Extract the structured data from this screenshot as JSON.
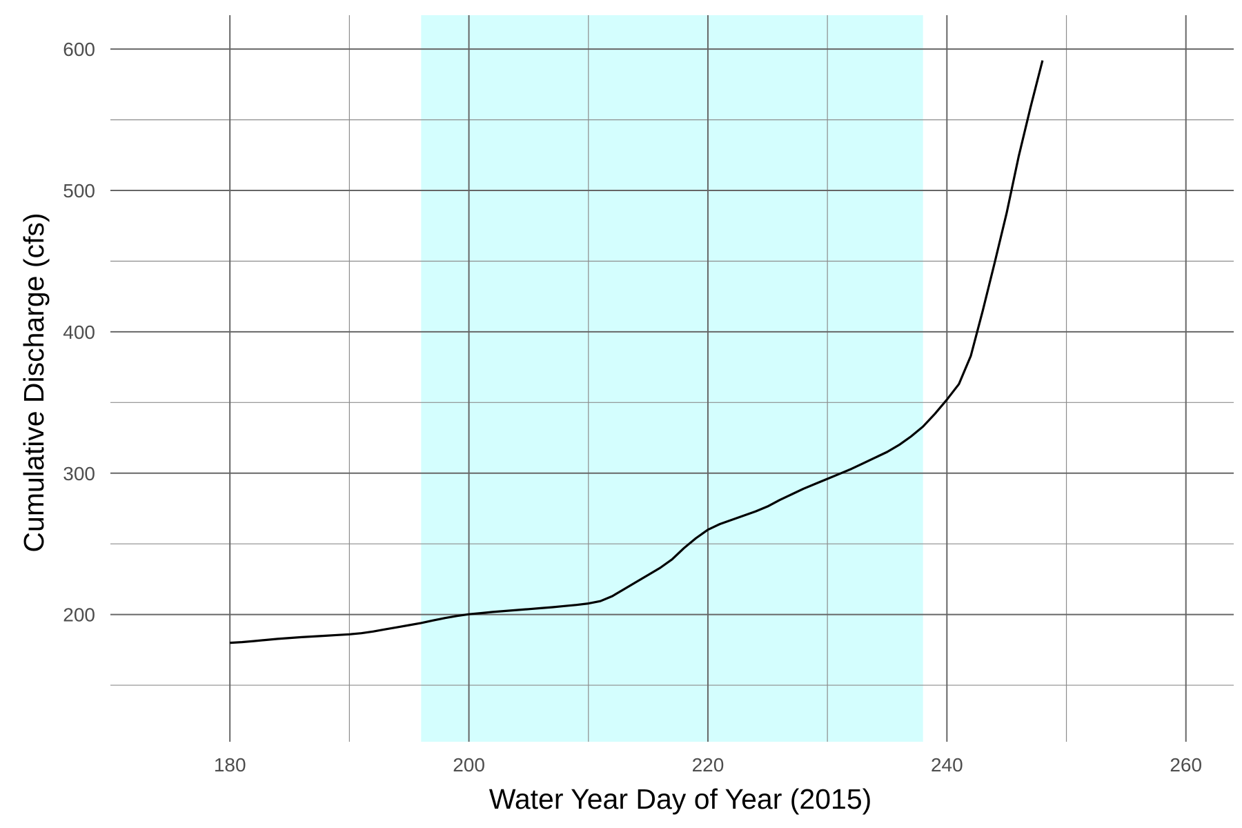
{
  "chart_data": {
    "type": "line",
    "xlabel": "Water Year Day of Year (2015)",
    "ylabel": "Cumulative Discharge (cfs)",
    "xlim": [
      170,
      264
    ],
    "ylim": [
      110,
      624
    ],
    "x_ticks": [
      180,
      200,
      220,
      240,
      260
    ],
    "x_minor_ticks": [
      190,
      210,
      230,
      250
    ],
    "y_ticks": [
      200,
      300,
      400,
      500,
      600
    ],
    "y_minor_ticks": [
      150,
      250,
      350,
      450,
      550
    ],
    "grid": true,
    "legend": "none",
    "shaded_region": {
      "x_start": 196,
      "x_end": 238,
      "color": "#d4fefe"
    },
    "line_color": "#000000",
    "series": [
      {
        "x": [
          180,
          181,
          182,
          183,
          184,
          185,
          186,
          187,
          188,
          189,
          190,
          191,
          192,
          193,
          194,
          195,
          196,
          197,
          198,
          199,
          200,
          201,
          202,
          203,
          204,
          205,
          206,
          207,
          208,
          209,
          210,
          211,
          212,
          213,
          214,
          215,
          216,
          217,
          218,
          219,
          220,
          221,
          222,
          223,
          224,
          225,
          226,
          227,
          228,
          229,
          230,
          231,
          232,
          233,
          234,
          235,
          236,
          237,
          238,
          239,
          240,
          241,
          242,
          243,
          244,
          245,
          246,
          247,
          248
        ],
        "y": [
          180,
          180.5,
          181.2,
          182,
          182.8,
          183.4,
          184,
          184.5,
          185,
          185.5,
          186,
          186.8,
          188,
          189.5,
          191,
          192.5,
          194,
          195.8,
          197.5,
          199,
          200.2,
          201,
          201.8,
          202.5,
          203.2,
          203.8,
          204.5,
          205.2,
          206,
          206.8,
          207.8,
          209.5,
          213,
          218,
          223,
          228,
          233,
          239,
          247,
          254,
          260,
          264,
          267,
          270,
          273,
          276.5,
          281,
          285,
          289,
          292.5,
          296,
          299.5,
          303,
          307,
          311,
          315,
          320,
          326,
          333,
          342,
          352,
          363,
          383,
          415,
          449,
          484,
          524,
          559,
          592
        ]
      }
    ]
  }
}
